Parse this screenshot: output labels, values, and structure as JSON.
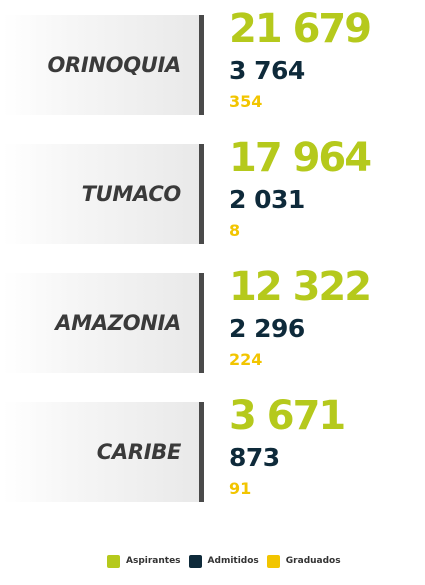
{
  "colors": {
    "aspirantes": "#b5c91c",
    "admitidos": "#0e2a3a",
    "graduados": "#f2c500",
    "divider": "#4a4a4a",
    "region_label": "#3a3a3a"
  },
  "regions": [
    {
      "name": "ORINOQUIA",
      "aspirantes": "21 679",
      "admitidos": "3 764",
      "graduados": "354"
    },
    {
      "name": "TUMACO",
      "aspirantes": "17 964",
      "admitidos": "2 031",
      "graduados": "8"
    },
    {
      "name": "AMAZONIA",
      "aspirantes": "12 322",
      "admitidos": "2 296",
      "graduados": "224"
    },
    {
      "name": "CARIBE",
      "aspirantes": "3 671",
      "admitidos": "873",
      "graduados": "91"
    }
  ],
  "legend": {
    "aspirantes_label": "Aspirantes",
    "admitidos_label": "Admitidos",
    "graduados_label": "Graduados"
  }
}
